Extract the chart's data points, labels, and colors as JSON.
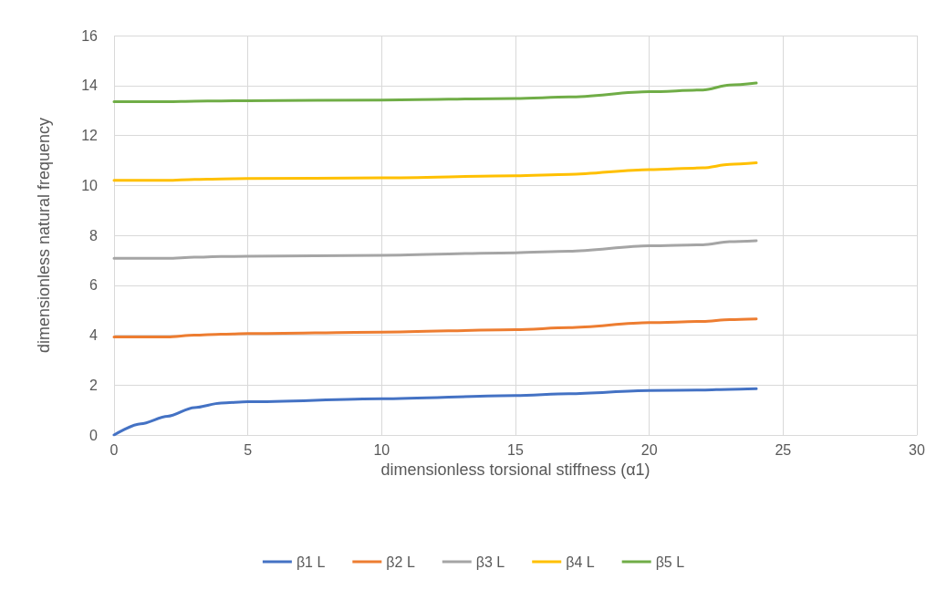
{
  "chart_data": {
    "type": "line",
    "xlabel": "dimensionless torsional stiffness (α1)",
    "ylabel": "dimensionless natural frequency",
    "x": [
      0,
      1,
      2,
      3,
      4,
      5,
      10,
      15,
      17,
      20,
      22,
      23,
      24
    ],
    "series": [
      {
        "name": "β1 L",
        "color": "#4472c4",
        "values": [
          0,
          0.45,
          0.75,
          1.1,
          1.28,
          1.33,
          1.45,
          1.58,
          1.65,
          1.78,
          1.8,
          1.83,
          1.85
        ]
      },
      {
        "name": "β2 L",
        "color": "#ed7d31",
        "values": [
          3.93,
          3.93,
          3.93,
          4.0,
          4.04,
          4.06,
          4.12,
          4.22,
          4.3,
          4.5,
          4.55,
          4.62,
          4.65
        ]
      },
      {
        "name": "β3 L",
        "color": "#a5a5a5",
        "values": [
          7.08,
          7.08,
          7.08,
          7.12,
          7.15,
          7.16,
          7.2,
          7.3,
          7.36,
          7.58,
          7.62,
          7.74,
          7.78
        ]
      },
      {
        "name": "β4 L",
        "color": "#ffc000",
        "values": [
          10.2,
          10.2,
          10.2,
          10.24,
          10.26,
          10.27,
          10.3,
          10.38,
          10.44,
          10.63,
          10.7,
          10.84,
          10.9
        ]
      },
      {
        "name": "β5 L",
        "color": "#70ad47",
        "values": [
          13.35,
          13.35,
          13.35,
          13.37,
          13.38,
          13.39,
          13.42,
          13.48,
          13.54,
          13.75,
          13.82,
          14.02,
          14.1
        ]
      }
    ],
    "xlim": [
      0,
      30
    ],
    "xticks": [
      0,
      5,
      10,
      15,
      20,
      25,
      30
    ],
    "ylim": [
      0,
      16
    ],
    "yticks": [
      0,
      2,
      4,
      6,
      8,
      10,
      12,
      14,
      16
    ],
    "grid": true,
    "legend": "bottom",
    "marker": "none",
    "line_style": "solid"
  }
}
